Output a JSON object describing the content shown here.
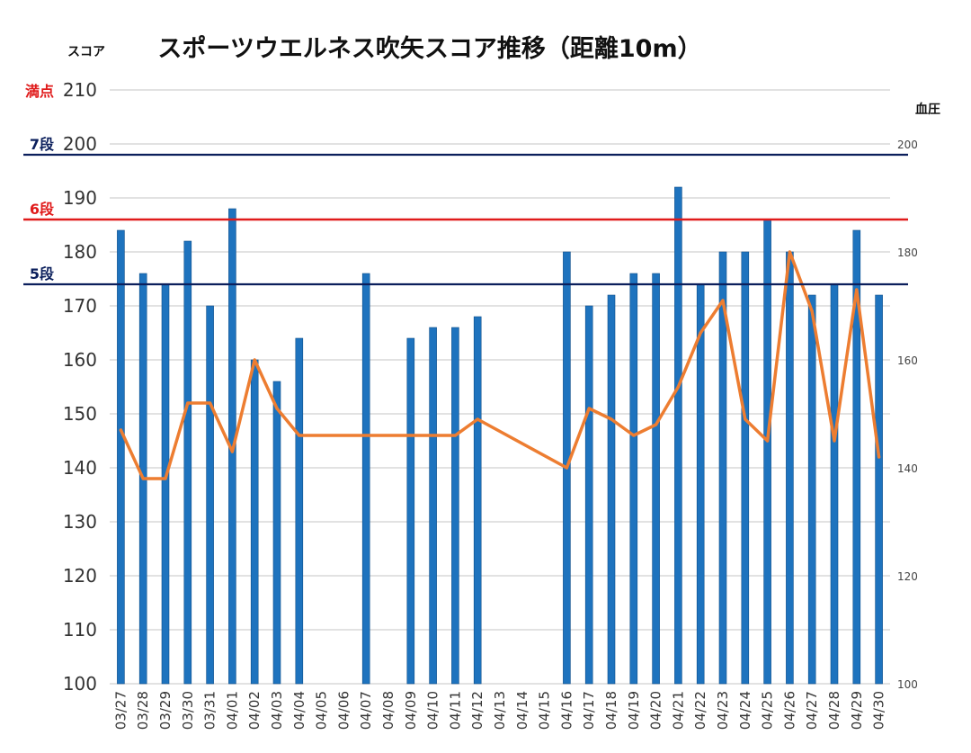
{
  "chart_data": {
    "type": "bar",
    "title": "スポーツウエルネス吹矢スコア推移（距離10m）",
    "ylabel": "スコア",
    "y2label": "血圧",
    "ylim": [
      100,
      210
    ],
    "y2lim": [
      100,
      210
    ],
    "yticks": [
      100,
      110,
      120,
      130,
      140,
      150,
      160,
      170,
      180,
      190,
      200,
      210
    ],
    "y2ticks": [
      100,
      120,
      140,
      160,
      180,
      200
    ],
    "grid": true,
    "colors": {
      "bars": "#1e73be",
      "line": "#ed7d31",
      "grid": "#d0d0d0",
      "navy": "#0b1f5c",
      "red": "#e01b1b",
      "text": "#111111"
    },
    "categories": [
      "03/27",
      "03/28",
      "03/29",
      "03/30",
      "03/31",
      "04/01",
      "04/02",
      "04/03",
      "04/04",
      "04/05",
      "04/06",
      "04/07",
      "04/08",
      "04/09",
      "04/10",
      "04/11",
      "04/12",
      "04/13",
      "04/14",
      "04/15",
      "04/16",
      "04/17",
      "04/18",
      "04/19",
      "04/20",
      "04/21",
      "04/22",
      "04/23",
      "04/24",
      "04/25",
      "04/26",
      "04/27",
      "04/28",
      "04/29",
      "04/30"
    ],
    "series": [
      {
        "axis": "left",
        "kind": "bar",
        "values": [
          184,
          176,
          174,
          182,
          170,
          188,
          160,
          156,
          164,
          null,
          null,
          176,
          null,
          164,
          166,
          166,
          168,
          null,
          null,
          null,
          180,
          170,
          172,
          176,
          176,
          192,
          174,
          180,
          180,
          186,
          180,
          172,
          174,
          184,
          172
        ]
      },
      {
        "axis": "right",
        "kind": "line",
        "values": [
          147,
          138,
          138,
          152,
          152,
          143,
          160,
          151,
          146,
          null,
          null,
          146,
          null,
          146,
          146,
          146,
          149,
          null,
          null,
          null,
          140,
          151,
          149,
          146,
          148,
          155,
          165,
          171,
          149,
          145,
          180,
          169,
          145,
          173,
          142
        ]
      }
    ],
    "reference_lines": [
      {
        "label": "満点",
        "y": 210,
        "color": "#e01b1b",
        "style": "grid"
      },
      {
        "label": "7段",
        "y": 198,
        "color": "#0b1f5c",
        "style": "solid"
      },
      {
        "label": "6段",
        "y": 186,
        "color": "#e01b1b",
        "style": "solid"
      },
      {
        "label": "5段",
        "y": 174,
        "color": "#0b1f5c",
        "style": "solid"
      }
    ]
  }
}
